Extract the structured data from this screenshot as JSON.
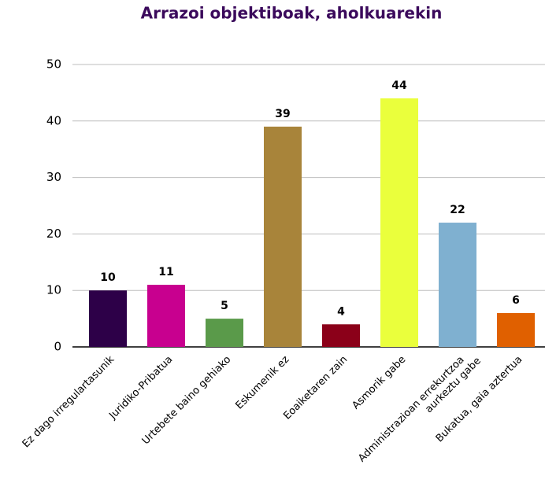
{
  "chart_data": {
    "type": "bar",
    "title": "Arrazoi objektiboak, aholkuarekin",
    "categories": [
      "Ez dago irregulartasunik",
      "Juridiko-Pribatua",
      "Urtebete baino gehiako",
      "Eskumenik ez",
      "Eoaiketaren zain",
      "Asmorik gabe",
      "Administrazioan errekurtzoa\naurkeztu gabe",
      "Bukatua, gaia aztertua"
    ],
    "values": [
      10,
      11,
      5,
      39,
      4,
      44,
      22,
      6
    ],
    "colors": [
      "#2d0048",
      "#c8008f",
      "#5a9a4a",
      "#a8843a",
      "#8b0019",
      "#eaff3c",
      "#7fb0d0",
      "#e06000"
    ],
    "ylim": [
      0,
      50
    ],
    "yticks": [
      0,
      10,
      20,
      30,
      40,
      50
    ],
    "grid": true
  }
}
